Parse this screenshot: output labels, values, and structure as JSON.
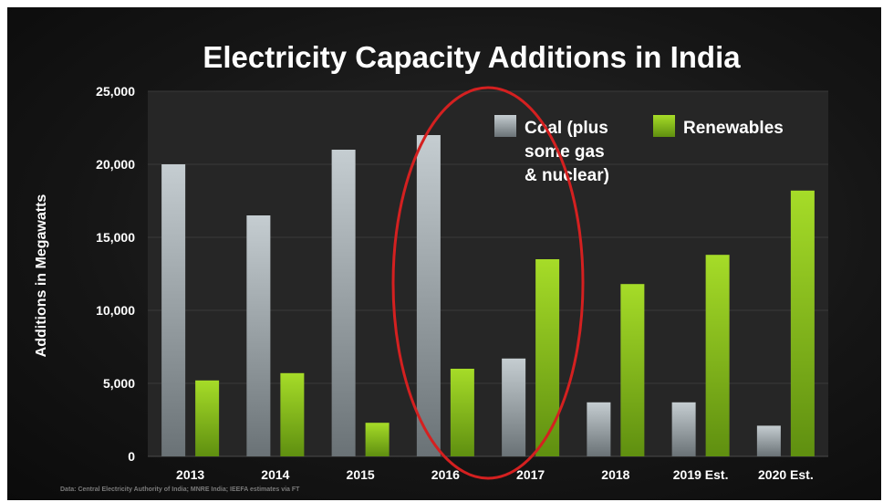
{
  "chart_data": {
    "type": "bar",
    "title": "Electricity Capacity Additions in India",
    "ylabel": "Additions in Megawatts",
    "xlabel": "",
    "categories": [
      "2013",
      "2014",
      "2015",
      "2016",
      "2017",
      "2018",
      "2019 Est.",
      "2020 Est."
    ],
    "series": [
      {
        "name": "Coal (plus some gas & nuclear)",
        "legend_lines": [
          "Coal (plus",
          "some gas",
          "& nuclear)"
        ],
        "color": "#b4bcc0",
        "values": [
          20000,
          16500,
          21000,
          22000,
          6700,
          3700,
          3700,
          2100
        ]
      },
      {
        "name": "Renewables",
        "legend_lines": [
          "Renewables"
        ],
        "color": "#8cc21e",
        "values": [
          5200,
          5700,
          2300,
          6000,
          13500,
          11800,
          13800,
          18200
        ]
      }
    ],
    "ylim": [
      0,
      25000
    ],
    "yticks": [
      0,
      5000,
      10000,
      15000,
      20000,
      25000
    ],
    "ytick_labels": [
      "0",
      "5,000",
      "10,000",
      "15,000",
      "20,000",
      "25,000"
    ],
    "grid": true,
    "legend_position": "top-right",
    "annotations": [
      {
        "type": "ellipse",
        "highlight_categories": [
          "2016",
          "2017"
        ],
        "color": "#d42020"
      }
    ]
  },
  "source_note": "Data: Central Electricity Authority of India; MNRE India; IEEFA estimates via FT"
}
